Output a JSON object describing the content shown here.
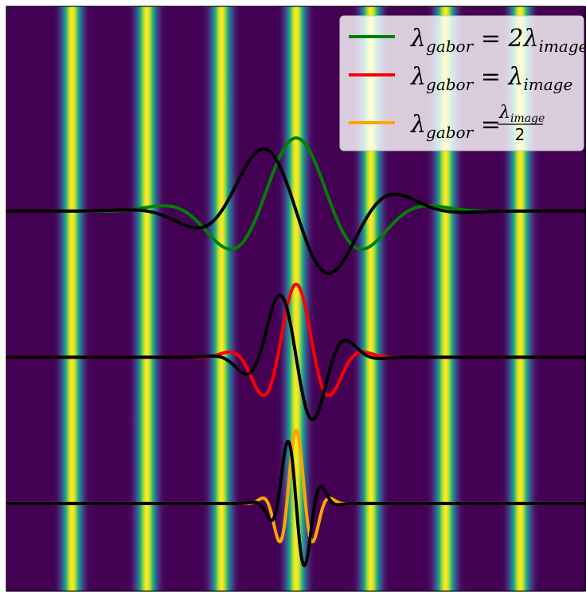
{
  "chart_data": {
    "type": "line",
    "title": "",
    "xlabel": "",
    "ylabel": "",
    "background": {
      "kind": "vertical-stripes",
      "colormap": "viridis",
      "stripe_centers": [
        -3.0,
        -2.0,
        -1.0,
        0.0,
        1.0,
        2.0,
        3.0
      ],
      "period": 1.0,
      "xlim": [
        -3.88,
        3.88
      ]
    },
    "groups": [
      {
        "baseline": 0.0,
        "amplitude": 1.0,
        "sigma": 0.82,
        "wavelength": 2.0,
        "series": [
          {
            "color": "#008000",
            "phase": "cos"
          },
          {
            "color": "#000000",
            "phase": "sin"
          }
        ]
      },
      {
        "baseline": -2.0,
        "amplitude": 1.0,
        "sigma": 0.41,
        "wavelength": 1.0,
        "series": [
          {
            "color": "#ff0000",
            "phase": "cos"
          },
          {
            "color": "#000000",
            "phase": "sin"
          }
        ]
      },
      {
        "baseline": -4.0,
        "amplitude": 1.0,
        "sigma": 0.205,
        "wavelength": 0.5,
        "series": [
          {
            "color": "#ffa500",
            "phase": "cos"
          },
          {
            "color": "#000000",
            "phase": "sin"
          }
        ]
      }
    ],
    "ylim": [
      -5.2,
      2.8
    ],
    "legend": {
      "placement": "top-right",
      "entries": [
        {
          "color": "#008000",
          "lhs_sym": "λ",
          "lhs_sub": "gabor",
          "rhs_pre": "2λ",
          "rhs_sub": "image"
        },
        {
          "color": "#ff0000",
          "lhs_sym": "λ",
          "lhs_sub": "gabor",
          "rhs_pre": "λ",
          "rhs_sub": "image"
        },
        {
          "color": "#ffa500",
          "lhs_sym": "λ",
          "lhs_sub": "gabor",
          "frac_num_sym": "λ",
          "frac_num_sub": "image",
          "frac_den": "2"
        }
      ]
    }
  }
}
